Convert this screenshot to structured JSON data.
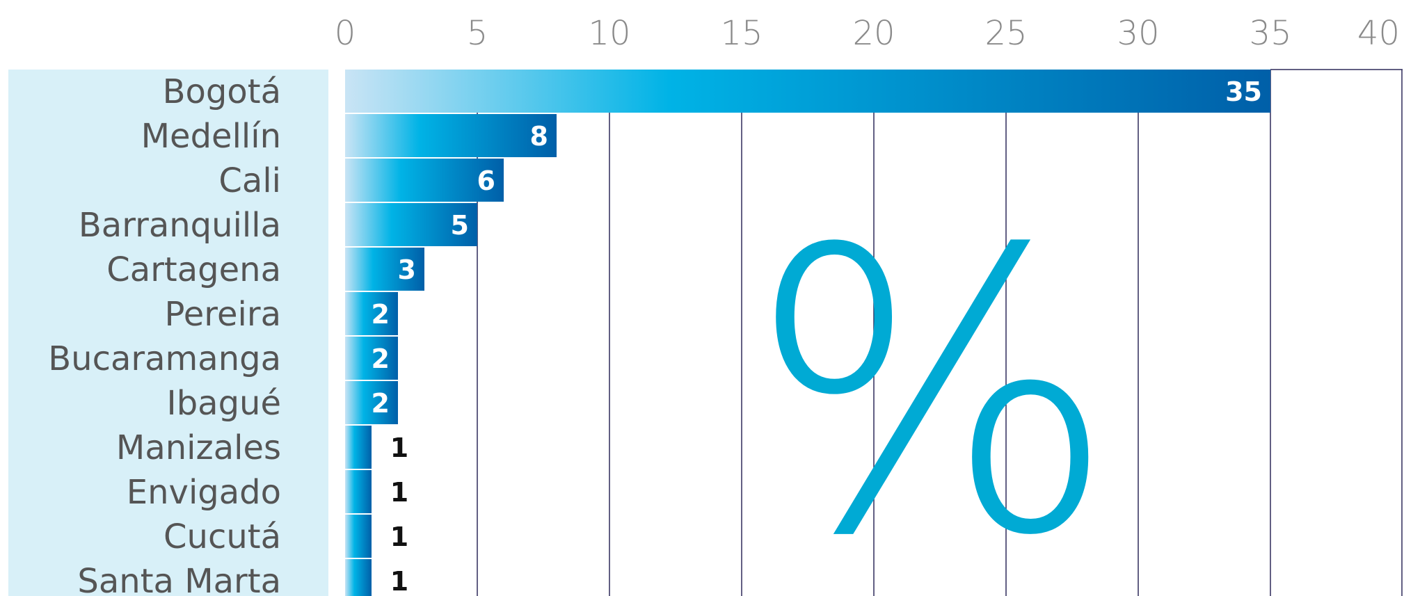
{
  "chart_data": {
    "type": "bar",
    "orientation": "horizontal",
    "categories": [
      "Bogotá",
      "Medellín",
      "Cali",
      "Barranquilla",
      "Cartagena",
      "Pereira",
      "Bucaramanga",
      "Ibagué",
      "Manizales",
      "Envigado",
      "Cucutá",
      "Santa Marta"
    ],
    "values": [
      35,
      8,
      6,
      5,
      3,
      2,
      2,
      2,
      1,
      1,
      1,
      1
    ],
    "value_labels": [
      "35",
      "8",
      "6",
      "5",
      "3",
      "2",
      "2",
      "2",
      "1",
      "1",
      "1",
      "1"
    ],
    "xlim": [
      0,
      40
    ],
    "x_ticks": [
      "0",
      "5",
      "10",
      "15",
      "20",
      "25",
      "30",
      "35",
      "40"
    ],
    "annotation": "%",
    "grid": true,
    "colors": {
      "bar_start": "#c9e4f5",
      "bar_mid": "#00b3e6",
      "bar_end": "#005fa8",
      "label_panel": "#d8f0f8",
      "grid": "#2e2a5a",
      "annotation": "#00aad4"
    }
  }
}
